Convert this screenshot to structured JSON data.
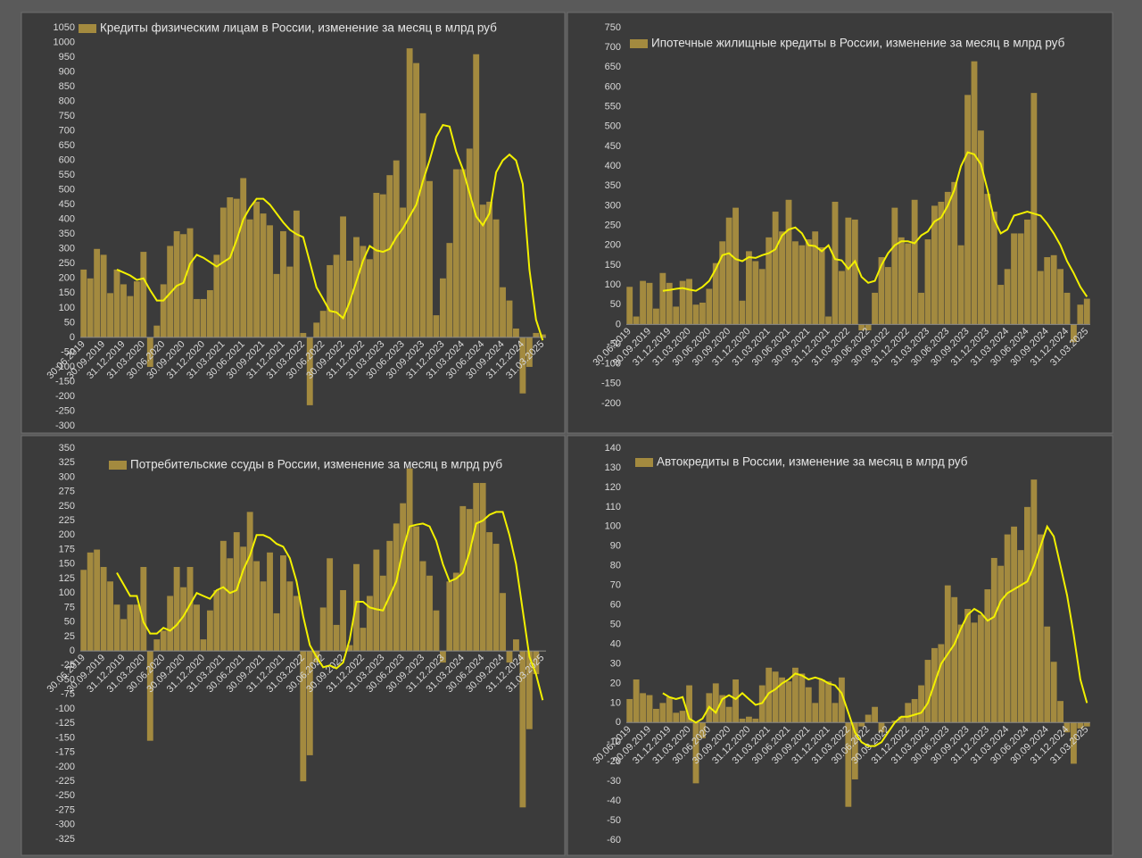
{
  "chart_data": [
    {
      "type": "bar",
      "ylim": [
        -300,
        1050
      ],
      "yticks": [
        -300,
        -250,
        -200,
        -150,
        -100,
        -50,
        0,
        50,
        100,
        150,
        200,
        250,
        300,
        350,
        400,
        450,
        500,
        550,
        600,
        650,
        700,
        750,
        800,
        850,
        900,
        950,
        1000,
        1050
      ],
      "categories": [
        "30.06.2019",
        null,
        null,
        "30.09.2019",
        null,
        null,
        "31.12.2019",
        null,
        null,
        "31.03.2020",
        null,
        null,
        "30.06.2020",
        null,
        null,
        "30.09.2020",
        null,
        null,
        "31.12.2020",
        null,
        null,
        "31.03.2021",
        null,
        null,
        "30.06.2021",
        null,
        null,
        "30.09.2021",
        null,
        null,
        "31.12.2021",
        null,
        null,
        "31.03.2022",
        null,
        null,
        "30.06.2022",
        null,
        null,
        "30.09.2022",
        null,
        null,
        "31.12.2022",
        null,
        null,
        "31.03.2023",
        null,
        null,
        "30.06.2023",
        null,
        null,
        "30.09.2023",
        null,
        null,
        "31.12.2023",
        null,
        null,
        "31.03.2024",
        null,
        null,
        "30.06.2024",
        null,
        null,
        "30.09.2024",
        null,
        null,
        "31.12.2024",
        null,
        null,
        "31.03.2025"
      ],
      "series": [
        {
          "name": "Кредиты физическим лицам  в России, изменение за месяц в млрд руб",
          "color": "#a38a3f",
          "values": [
            230,
            200,
            300,
            280,
            150,
            230,
            180,
            140,
            190,
            290,
            -100,
            40,
            180,
            310,
            360,
            350,
            370,
            130,
            130,
            160,
            280,
            440,
            475,
            470,
            540,
            400,
            460,
            420,
            380,
            215,
            360,
            240,
            430,
            15,
            -230,
            50,
            90,
            245,
            280,
            410,
            260,
            340,
            310,
            265,
            490,
            485,
            550,
            600,
            440,
            980,
            930,
            760,
            530,
            75,
            200,
            320,
            570,
            570,
            640,
            960,
            450,
            460,
            400,
            170,
            125,
            30,
            -190,
            -100,
            15,
            10
          ]
        }
      ],
      "trend": {
        "color": "#f2f000",
        "values": [
          null,
          null,
          null,
          null,
          null,
          230,
          220,
          210,
          195,
          200,
          160,
          125,
          125,
          150,
          175,
          185,
          250,
          280,
          270,
          255,
          240,
          255,
          270,
          330,
          400,
          440,
          470,
          470,
          450,
          420,
          390,
          365,
          350,
          340,
          255,
          170,
          130,
          90,
          85,
          65,
          120,
          190,
          260,
          310,
          295,
          290,
          300,
          340,
          370,
          410,
          450,
          530,
          600,
          680,
          720,
          715,
          630,
          570,
          490,
          410,
          380,
          420,
          560,
          600,
          620,
          600,
          520,
          230,
          60,
          -10
        ]
      }
    },
    {
      "type": "bar",
      "ylim": [
        -200,
        750
      ],
      "yticks": [
        -200,
        -150,
        -100,
        -50,
        0,
        50,
        100,
        150,
        200,
        250,
        300,
        350,
        400,
        450,
        500,
        550,
        600,
        650,
        700,
        750
      ],
      "categories": [
        "30.06.2019",
        null,
        null,
        "30.09.2019",
        null,
        null,
        "31.12.2019",
        null,
        null,
        "31.03.2020",
        null,
        null,
        "30.06.2020",
        null,
        null,
        "30.09.2020",
        null,
        null,
        "31.12.2020",
        null,
        null,
        "31.03.2021",
        null,
        null,
        "30.06.2021",
        null,
        null,
        "30.09.2021",
        null,
        null,
        "31.12.2021",
        null,
        null,
        "31.03.2022",
        null,
        null,
        "30.06.2022",
        null,
        null,
        "30.09.2022",
        null,
        null,
        "31.12.2022",
        null,
        null,
        "31.03.2023",
        null,
        null,
        "30.06.2023",
        null,
        null,
        "30.09.2023",
        null,
        null,
        "31.12.2023",
        null,
        null,
        "31.03.2024",
        null,
        null,
        "30.06.2024",
        null,
        null,
        "30.09.2024",
        null,
        null,
        "31.12.2024",
        null,
        null,
        "31.03.2025"
      ],
      "series": [
        {
          "name": "Ипотечные жилищные кредиты в России, изменение за месяц в млрд руб",
          "color": "#a38a3f",
          "values": [
            95,
            20,
            110,
            105,
            40,
            130,
            105,
            45,
            110,
            115,
            50,
            55,
            90,
            155,
            210,
            270,
            295,
            60,
            185,
            160,
            140,
            220,
            285,
            235,
            315,
            210,
            200,
            215,
            235,
            195,
            20,
            310,
            135,
            270,
            265,
            -15,
            -15,
            80,
            170,
            145,
            295,
            220,
            205,
            315,
            80,
            215,
            300,
            310,
            335,
            360,
            200,
            580,
            665,
            490,
            330,
            285,
            100,
            140,
            230,
            230,
            265,
            585,
            135,
            170,
            175,
            140,
            80,
            -45,
            50,
            65
          ]
        }
      ],
      "trend": {
        "color": "#f2f000",
        "values": [
          null,
          null,
          null,
          null,
          null,
          85,
          87,
          90,
          92,
          88,
          85,
          95,
          110,
          140,
          175,
          180,
          165,
          160,
          170,
          168,
          175,
          180,
          190,
          225,
          240,
          245,
          230,
          200,
          198,
          185,
          200,
          165,
          162,
          140,
          160,
          120,
          105,
          110,
          150,
          180,
          200,
          210,
          210,
          205,
          225,
          235,
          260,
          270,
          300,
          340,
          400,
          435,
          430,
          405,
          340,
          265,
          230,
          240,
          275,
          280,
          285,
          280,
          275,
          255,
          230,
          200,
          160,
          130,
          95,
          70
        ]
      }
    },
    {
      "type": "bar",
      "ylim": [
        -325,
        350
      ],
      "yticks": [
        -325,
        -300,
        -275,
        -250,
        -225,
        -200,
        -175,
        -150,
        -125,
        -100,
        -75,
        -50,
        -25,
        0,
        25,
        50,
        75,
        100,
        125,
        150,
        175,
        200,
        225,
        250,
        275,
        300,
        325,
        350
      ],
      "categories": [
        "30.06.2019",
        null,
        null,
        "30.09.2019",
        null,
        null,
        "31.12.2019",
        null,
        null,
        "31.03.2020",
        null,
        null,
        "30.06.2020",
        null,
        null,
        "30.09.2020",
        null,
        null,
        "31.12.2020",
        null,
        null,
        "31.03.2021",
        null,
        null,
        "30.06.2021",
        null,
        null,
        "30.09.2021",
        null,
        null,
        "31.12.2021",
        null,
        null,
        "31.03.2022",
        null,
        null,
        "30.06.2022",
        null,
        null,
        "30.09.2022",
        null,
        null,
        "31.12.2022",
        null,
        null,
        "31.03.2023",
        null,
        null,
        "30.06.2023",
        null,
        null,
        "30.09.2023",
        null,
        null,
        "31.12.2023",
        null,
        null,
        "31.03.2024",
        null,
        null,
        "30.06.2024",
        null,
        null,
        "30.09.2024",
        null,
        null,
        "31.12.2024",
        null,
        null,
        "31.03.2025"
      ],
      "series": [
        {
          "name": "Потребительские ссуды в России, изменение за месяц в млрд руб",
          "color": "#a38a3f",
          "values": [
            140,
            170,
            175,
            145,
            120,
            80,
            55,
            80,
            80,
            145,
            -155,
            20,
            35,
            95,
            145,
            110,
            145,
            80,
            20,
            70,
            105,
            190,
            160,
            205,
            180,
            240,
            155,
            120,
            170,
            65,
            165,
            120,
            95,
            -225,
            -180,
            -20,
            75,
            160,
            45,
            105,
            10,
            150,
            40,
            95,
            175,
            130,
            190,
            220,
            255,
            315,
            215,
            155,
            130,
            70,
            -20,
            120,
            135,
            250,
            245,
            290,
            290,
            205,
            185,
            100,
            -20,
            20,
            -270,
            -135,
            -40,
            0
          ]
        }
      ],
      "trend": {
        "color": "#f2f000",
        "values": [
          null,
          null,
          null,
          null,
          null,
          135,
          115,
          95,
          95,
          50,
          30,
          30,
          40,
          35,
          45,
          60,
          80,
          100,
          95,
          90,
          105,
          110,
          100,
          105,
          140,
          165,
          200,
          200,
          195,
          185,
          180,
          160,
          120,
          60,
          10,
          -10,
          -28,
          -25,
          -30,
          -20,
          20,
          85,
          85,
          75,
          72,
          70,
          95,
          120,
          175,
          215,
          218,
          220,
          215,
          190,
          150,
          120,
          125,
          135,
          170,
          220,
          225,
          235,
          240,
          240,
          200,
          150,
          70,
          -10,
          -40,
          -85
        ]
      }
    },
    {
      "type": "bar",
      "ylim": [
        -60,
        140
      ],
      "yticks": [
        -60,
        -50,
        -40,
        -30,
        -20,
        -10,
        0,
        10,
        20,
        30,
        40,
        50,
        60,
        70,
        80,
        90,
        100,
        110,
        120,
        130,
        140
      ],
      "categories": [
        "30.06.2019",
        null,
        null,
        "30.09.2019",
        null,
        null,
        "31.12.2019",
        null,
        null,
        "31.03.2020",
        null,
        null,
        "30.06.2020",
        null,
        null,
        "30.09.2020",
        null,
        null,
        "31.12.2020",
        null,
        null,
        "31.03.2021",
        null,
        null,
        "30.06.2021",
        null,
        null,
        "30.09.2021",
        null,
        null,
        "31.12.2021",
        null,
        null,
        "31.03.2022",
        null,
        null,
        "30.06.2022",
        null,
        null,
        "30.09.2022",
        null,
        null,
        "31.12.2022",
        null,
        null,
        "31.03.2023",
        null,
        null,
        "30.06.2023",
        null,
        null,
        "30.09.2023",
        null,
        null,
        "31.12.2023",
        null,
        null,
        "31.03.2024",
        null,
        null,
        "30.06.2024",
        null,
        null,
        "30.09.2024",
        null,
        null,
        "31.12.2024",
        null,
        null,
        "31.03.2025"
      ],
      "series": [
        {
          "name": "Автокредиты в России, изменение за месяц в млрд руб",
          "color": "#a38a3f",
          "values": [
            12,
            22,
            15,
            14,
            7,
            10,
            13,
            5,
            6,
            19,
            -31,
            -8,
            15,
            20,
            14,
            8,
            22,
            2,
            3,
            2,
            19,
            28,
            26,
            23,
            21,
            28,
            25,
            18,
            10,
            22,
            21,
            10,
            23,
            -43,
            -29,
            -2,
            4,
            8,
            -5,
            0,
            1,
            3,
            10,
            12,
            19,
            32,
            38,
            40,
            70,
            64,
            50,
            58,
            51,
            55,
            68,
            84,
            80,
            96,
            100,
            88,
            110,
            124,
            96,
            49,
            31,
            11,
            -5,
            -21,
            -3,
            -2
          ]
        }
      ],
      "trend": {
        "color": "#f2f000",
        "values": [
          null,
          null,
          null,
          null,
          null,
          15,
          13,
          12,
          13,
          2,
          0,
          2,
          8,
          5,
          12,
          14,
          12,
          15,
          12,
          9,
          10,
          15,
          17,
          20,
          22,
          25,
          24,
          22,
          23,
          22,
          20,
          19,
          15,
          5,
          -5,
          -10,
          -12,
          -12,
          -10,
          -5,
          0,
          3,
          3,
          4,
          5,
          10,
          20,
          30,
          35,
          40,
          48,
          55,
          58,
          56,
          52,
          54,
          62,
          66,
          68,
          70,
          72,
          80,
          90,
          100,
          95,
          80,
          65,
          45,
          22,
          10
        ]
      }
    }
  ]
}
